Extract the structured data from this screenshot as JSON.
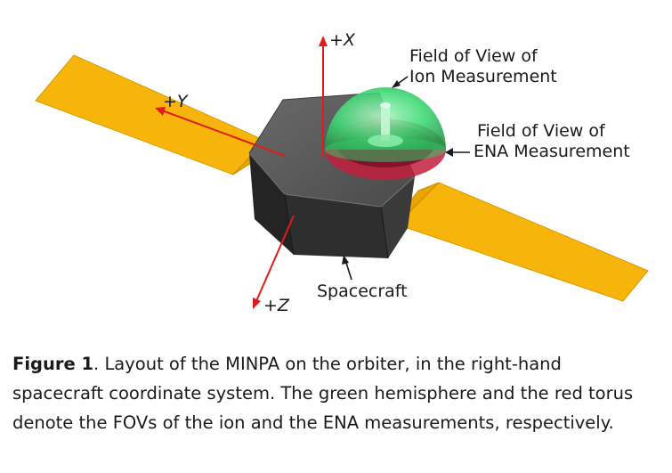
{
  "labels": {
    "x_axis": "+X",
    "y_axis": "+Y",
    "z_axis": "+Z",
    "ion_fov_line1": "Field of View of",
    "ion_fov_line2": "Ion Measurement",
    "ena_fov_line1": "Field of View of",
    "ena_fov_line2": "ENA Measurement",
    "spacecraft": "Spacecraft"
  },
  "caption": {
    "figure_number": "Figure 1",
    "text": ". Layout of the MINPA on the orbiter, in the right-hand spacecraft coordinate system. The green hemisphere and the red torus denote the FOVs of the ion and the ENA measurements, respectively."
  },
  "colors": {
    "solar_panel": "#f7b50c",
    "body": "#2e2e2e",
    "axis": "#e01b1b",
    "ion_fov": "#2ed36a",
    "ena_fov": "#c1203c"
  }
}
